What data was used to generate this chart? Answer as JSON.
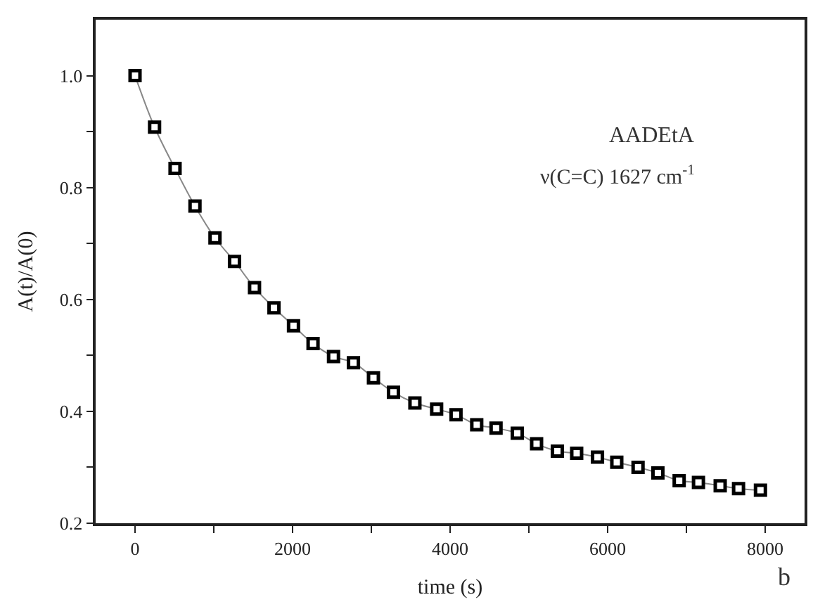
{
  "chart_data": {
    "type": "line",
    "xlabel": "time (s)",
    "ylabel": "A(t)/A(0)",
    "x": [
      0,
      248,
      508,
      761,
      1015,
      1263,
      1517,
      1764,
      2012,
      2260,
      2520,
      2773,
      3027,
      3281,
      3553,
      3829,
      4075,
      4338,
      4583,
      4853,
      5098,
      5362,
      5607,
      5871,
      6116,
      6386,
      6638,
      6908,
      7153,
      7429,
      7662,
      7940
    ],
    "series": [
      {
        "color": "#000000",
        "values": [
          1.0,
          0.908,
          0.834,
          0.767,
          0.71,
          0.668,
          0.621,
          0.585,
          0.553,
          0.521,
          0.498,
          0.487,
          0.46,
          0.434,
          0.415,
          0.404,
          0.394,
          0.376,
          0.37,
          0.361,
          0.342,
          0.329,
          0.325,
          0.318,
          0.309,
          0.3,
          0.29,
          0.276,
          0.273,
          0.267,
          0.262,
          0.259
        ]
      }
    ],
    "marker": "square",
    "xlim": [
      -500,
      8500
    ],
    "xticks": [
      0,
      {
        "value": 1000,
        "label": null
      },
      2000,
      {
        "value": 3000,
        "label": null
      },
      4000,
      {
        "value": 5000,
        "label": null
      },
      6000,
      {
        "value": 7000,
        "label": null
      },
      8000
    ],
    "ylim": [
      0.2,
      1.1
    ],
    "yticks": [
      {
        "value": 0.2,
        "label": "0.2"
      },
      {
        "value": 0.3,
        "label": null
      },
      {
        "value": 0.4,
        "label": "0.4"
      },
      {
        "value": 0.5,
        "label": null
      },
      {
        "value": 0.6,
        "label": "0.6"
      },
      {
        "value": 0.7,
        "label": null
      },
      {
        "value": 0.8,
        "label": "0.8"
      },
      {
        "value": 0.9,
        "label": null
      },
      {
        "value": 1.0,
        "label": "1.0"
      }
    ],
    "annotations": [
      "AADEtA",
      "ν(C=C) 1627 cm$^{-1}$",
      "b"
    ]
  }
}
